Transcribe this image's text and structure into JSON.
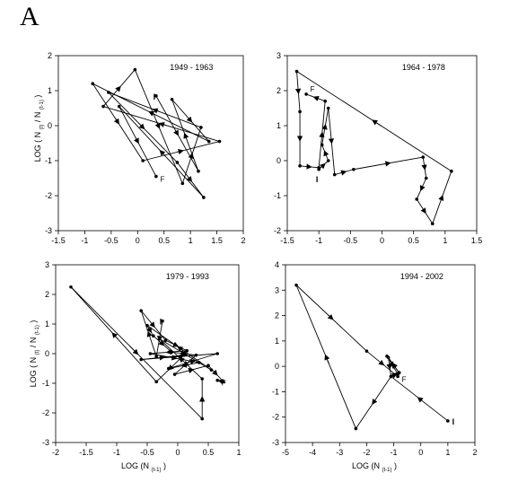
{
  "figure": {
    "panel_letter": "A",
    "ylabel_parts": [
      "LOG ( N",
      "(t)",
      "/ N",
      "(t-1)",
      ")"
    ],
    "xlabel_parts": [
      "LOG (N",
      "(t-1)",
      ")"
    ]
  },
  "chart_data": [
    {
      "type": "line",
      "title": "1949 - 1963",
      "xlim": [
        -1.5,
        2
      ],
      "ylim": [
        -3,
        2
      ],
      "xticks": [
        "-1.5",
        "-1",
        "-0.5",
        "0",
        "0.5",
        "1",
        "1.5",
        "2"
      ],
      "yticks": [
        "-3",
        "-2",
        "-1",
        "0",
        "1",
        "2"
      ],
      "start_label": "I",
      "end_label": "F",
      "start_point": [
        0.35,
        0.85
      ],
      "end_point": [
        0.35,
        -1.45
      ],
      "x": [
        0.35,
        1.15,
        0.65,
        1.35,
        -0.85,
        0.1,
        1.55,
        -0.65,
        -0.05,
        0.85,
        1.2,
        -0.55,
        0.75,
        1.25,
        -0.35,
        0.35
      ],
      "y": [
        0.85,
        -1.3,
        0.75,
        -0.45,
        1.2,
        -1.0,
        -0.45,
        0.55,
        1.6,
        -1.65,
        -0.05,
        0.95,
        -1.05,
        -2.05,
        0.55,
        -1.45
      ]
    },
    {
      "type": "line",
      "title": "1964 - 1978",
      "xlim": [
        -1.5,
        1.5
      ],
      "ylim": [
        -2,
        3
      ],
      "xticks": [
        "-1.5",
        "-1",
        "-0.5",
        "0",
        "0.5",
        "1",
        "1.5"
      ],
      "yticks": [
        "-2",
        "-1",
        "0",
        "1",
        "2",
        "3"
      ],
      "start_label": "I",
      "end_label": "F",
      "start_point": [
        -1.0,
        -0.25
      ],
      "end_point": [
        -1.2,
        1.9
      ],
      "x": [
        -1.0,
        -0.85,
        -0.95,
        -0.85,
        -0.75,
        -0.45,
        0.65,
        0.7,
        0.55,
        0.8,
        1.1,
        -1.35,
        -1.3,
        -1.3,
        -1.0,
        -0.9,
        -1.2
      ],
      "y": [
        -0.25,
        0.0,
        0.45,
        1.5,
        -0.4,
        -0.25,
        0.1,
        -0.5,
        -1.1,
        -1.8,
        -0.3,
        2.55,
        1.4,
        -0.15,
        -0.2,
        1.7,
        1.9
      ]
    },
    {
      "type": "line",
      "title": "1979 - 1993",
      "xlim": [
        -2,
        1
      ],
      "ylim": [
        -3,
        3
      ],
      "xticks": [
        "-2",
        "-1.5",
        "-1",
        "-0.5",
        "0",
        "0.5",
        "1"
      ],
      "yticks": [
        "-3",
        "-2",
        "-1",
        "0",
        "1",
        "2",
        "3"
      ],
      "start_label": "I",
      "end_label": "F",
      "start_point": [
        -0.25,
        1.1
      ],
      "end_point": [
        0.65,
        -0.9
      ],
      "x": [
        -0.25,
        -0.35,
        -0.6,
        -0.2,
        0.15,
        -0.45,
        0.35,
        -0.15,
        0.65,
        -0.6,
        0.1,
        -0.35,
        -1.75,
        0.4,
        0.4,
        -0.3,
        0.55,
        -0.5,
        -0.4,
        -0.1,
        0.3,
        -0.05,
        0.5,
        0.75,
        0.65
      ],
      "y": [
        1.1,
        -0.1,
        1.45,
        0.45,
        0.1,
        0.0,
        -0.3,
        -0.5,
        0.0,
        -0.2,
        -0.05,
        -0.95,
        2.25,
        -2.2,
        -0.85,
        0.5,
        -0.55,
        0.95,
        0.6,
        0.05,
        -0.05,
        -0.7,
        -0.4,
        -0.95,
        -0.9
      ]
    },
    {
      "type": "line",
      "title": "1994 - 2002",
      "xlim": [
        -5,
        2
      ],
      "ylim": [
        -3,
        4
      ],
      "xticks": [
        "-5",
        "-4",
        "-3",
        "-2",
        "-1",
        "0",
        "1",
        "2"
      ],
      "yticks": [
        "-3",
        "-2",
        "-1",
        "0",
        "1",
        "2",
        "3",
        "4"
      ],
      "start_label": "I",
      "end_label": "F",
      "start_point": [
        1.0,
        -2.15
      ],
      "end_point": [
        -0.85,
        -0.4
      ],
      "x": [
        1.0,
        -1.1,
        -2.4,
        -4.6,
        -2.0,
        -0.85
      ],
      "y": [
        -2.15,
        -0.4,
        -2.45,
        3.2,
        0.6,
        -0.4
      ],
      "x_extra_loop": [
        -1.1,
        -0.8,
        -1.25,
        -0.85,
        -0.8,
        -1.2,
        -1.1
      ],
      "y_extra_loop": [
        -0.4,
        -0.25,
        0.4,
        -0.3,
        -0.25,
        0.35,
        -0.4
      ]
    }
  ]
}
